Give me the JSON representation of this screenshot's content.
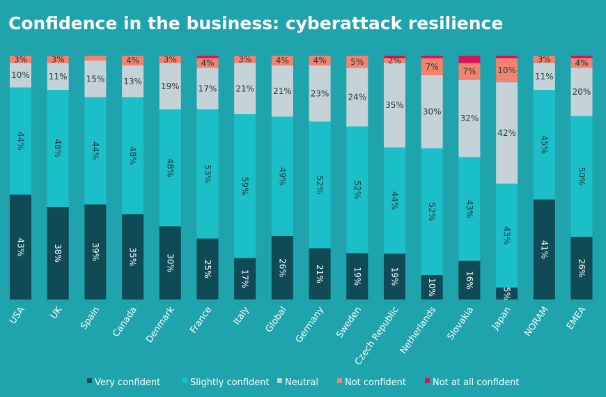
{
  "chart_data": {
    "type": "bar",
    "stacked": true,
    "title": "Confidence in the business: cyberattack resilience",
    "categories": [
      "USA",
      "UK",
      "Spain",
      "Canada",
      "Denmark",
      "France",
      "Italy",
      "Global",
      "Germany",
      "Sweden",
      "Czech Republic",
      "Netherlands",
      "Slovakia",
      "Japan",
      "NORAM",
      "EMEA"
    ],
    "series": [
      {
        "name": "Very confident",
        "color": "#0F4A56",
        "values": [
          43,
          38,
          39,
          35,
          30,
          25,
          17,
          26,
          21,
          19,
          19,
          10,
          16,
          5,
          41,
          26
        ]
      },
      {
        "name": "Slightly confident",
        "color": "#1BBFC8",
        "values": [
          44,
          48,
          44,
          48,
          48,
          53,
          59,
          49,
          52,
          52,
          44,
          52,
          43,
          43,
          45,
          50
        ]
      },
      {
        "name": "Neutral",
        "color": "#C5D2D8",
        "values": [
          10,
          11,
          15,
          13,
          19,
          17,
          21,
          21,
          23,
          24,
          35,
          30,
          32,
          42,
          11,
          20
        ]
      },
      {
        "name": "Not confident",
        "color": "#F4836E",
        "values": [
          3,
          3,
          2,
          4,
          3,
          4,
          3,
          4,
          4,
          5,
          2,
          7,
          7,
          10,
          3,
          4
        ]
      },
      {
        "name": "Not at all confident",
        "color": "#D6145A",
        "values": [
          0,
          0,
          0,
          0,
          0,
          1,
          0,
          0,
          0,
          0,
          1,
          1,
          3,
          1,
          0,
          1
        ]
      }
    ],
    "value_labels": [
      [
        "43%",
        "38%",
        "39%",
        "35%",
        "30%",
        "25%",
        "17%",
        "26%",
        "21%",
        "19%",
        "19%",
        "10%",
        "16%",
        "5%",
        "41%",
        "26%"
      ],
      [
        "44%",
        "48%",
        "44%",
        "48%",
        "48%",
        "53%",
        "59%",
        "49%",
        "52%",
        "52%",
        "44%",
        "52%",
        "43%",
        "43%",
        "45%",
        "50%"
      ],
      [
        "10%",
        "11%",
        "15%",
        "13%",
        "19%",
        "17%",
        "21%",
        "21%",
        "23%",
        "24%",
        "35%",
        "30%",
        "32%",
        "42%",
        "11%",
        "20%"
      ],
      [
        "3%",
        "3%",
        "",
        "4%",
        "3%",
        "4%",
        "3%",
        "4%",
        "4%",
        "5%",
        "2%",
        "7%",
        "7%",
        "10%",
        "3%",
        "4%"
      ],
      [
        "",
        "",
        "",
        "",
        "",
        "",
        "",
        "",
        "",
        "",
        "",
        "",
        "",
        "",
        "",
        ""
      ]
    ],
    "ylim": [
      0,
      100
    ],
    "legend_position": "bottom",
    "grid": false
  }
}
